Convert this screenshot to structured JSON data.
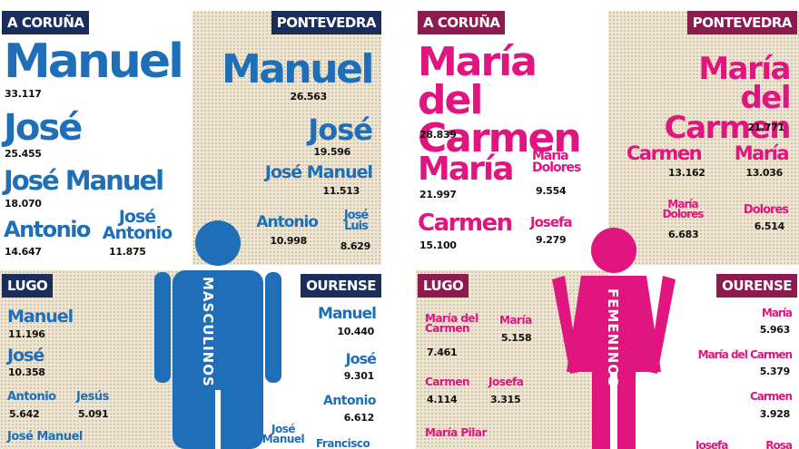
{
  "panels": [
    {
      "label": "MASCULINOS",
      "provinces": [
        {
          "name": "A CORUÑA",
          "entries": [
            {
              "name": "Manuel",
              "count": "33.117"
            },
            {
              "name": "José",
              "count": "25.455"
            },
            {
              "name": "José Manuel",
              "count": "18.070"
            },
            {
              "name": "Antonio",
              "count": "14.647"
            },
            {
              "name": "José Antonio",
              "count": "11.875"
            }
          ]
        },
        {
          "name": "PONTEVEDRA",
          "entries": [
            {
              "name": "Manuel",
              "count": "26.563"
            },
            {
              "name": "José",
              "count": "19.596"
            },
            {
              "name": "José Manuel",
              "count": "11.513"
            },
            {
              "name": "Antonio",
              "count": "10.998"
            },
            {
              "name": "José Luis",
              "count": "8.629"
            }
          ]
        },
        {
          "name": "LUGO",
          "entries": [
            {
              "name": "Manuel",
              "count": "11.196"
            },
            {
              "name": "José",
              "count": "10.358"
            },
            {
              "name": "Antonio",
              "count": "5.642"
            },
            {
              "name": "Jesús",
              "count": "5.091"
            },
            {
              "name": "José Manuel"
            }
          ]
        },
        {
          "name": "OURENSE",
          "entries": [
            {
              "name": "Manuel",
              "count": "10.440"
            },
            {
              "name": "José",
              "count": "9.301"
            },
            {
              "name": "Antonio",
              "count": "6.612"
            },
            {
              "name": "José Manuel"
            },
            {
              "name": "Francisco"
            }
          ]
        }
      ]
    },
    {
      "label": "FEMENINOS",
      "provinces": [
        {
          "name": "A CORUÑA",
          "entries": [
            {
              "name": "María del Carmen",
              "count": "28.839"
            },
            {
              "name": "María",
              "count": "21.997"
            },
            {
              "name": "María Dolores",
              "count": "9.554"
            },
            {
              "name": "Carmen",
              "count": "15.100"
            },
            {
              "name": "Josefa",
              "count": "9.279"
            }
          ]
        },
        {
          "name": "PONTEVEDRA",
          "entries": [
            {
              "name": "María del Carmen",
              "count": "21.771"
            },
            {
              "name": "Carmen",
              "count": "13.162"
            },
            {
              "name": "María",
              "count": "13.036"
            },
            {
              "name": "María Dolores",
              "count": "6.683"
            },
            {
              "name": "Dolores",
              "count": "6.514"
            }
          ]
        },
        {
          "name": "LUGO",
          "entries": [
            {
              "name": "María del Carmen",
              "count": "7.461"
            },
            {
              "name": "María",
              "count": "5.158"
            },
            {
              "name": "Carmen",
              "count": "4.114"
            },
            {
              "name": "Josefa",
              "count": "3.315"
            },
            {
              "name": "María Pilar"
            }
          ]
        },
        {
          "name": "OURENSE",
          "entries": [
            {
              "name": "María",
              "count": "5.963"
            },
            {
              "name": "María del Carmen",
              "count": "5.379"
            },
            {
              "name": "Carmen",
              "count": "3.928"
            },
            {
              "name": "Josefa"
            },
            {
              "name": "Rosa"
            }
          ]
        }
      ]
    }
  ]
}
